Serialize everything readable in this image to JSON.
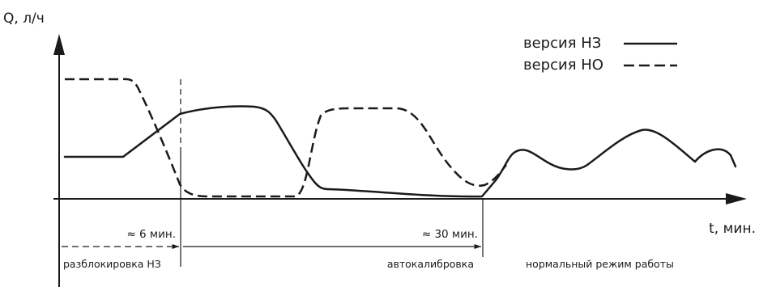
{
  "axes": {
    "y_label": "Q, л/ч",
    "x_label": "t, мин."
  },
  "legend": {
    "nz_label": "версия НЗ",
    "no_label": "версия НО"
  },
  "durations": {
    "first": "≈ 6 мин.",
    "second": "≈ 30 мин."
  },
  "phases": {
    "unlock": "разблокировка НЗ",
    "autocal": "автокалибровка",
    "normal": "нормальный режим работы"
  },
  "colors": {
    "ink": "#1a1a1a"
  }
}
